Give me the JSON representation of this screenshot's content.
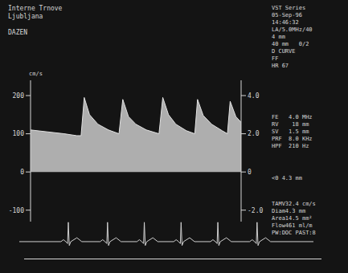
{
  "header": [
    "Interne Trnove",
    "Ljubljana",
    "DAZEN"
  ],
  "panel": [
    [
      "VST Series",
      "05-Sep-96",
      "14:46:32",
      "LA/5.0MHz/40",
      "4 mm",
      "40 mm   0/2",
      "D CURVE",
      "FF",
      "HR 67"
    ],
    [
      "FE   4.0 MHz",
      "RV    18 mm",
      "SV   1.5 mm",
      "PRF  8.0 KHz",
      "HPF  210 Hz"
    ],
    [
      "<0 4.3 mm"
    ],
    [
      "TAMV32.4 cm/s",
      "Diam4.3 mm",
      "Area14.5 mm²",
      "Flow461 ml/m",
      "PW:DOC PAST:8"
    ]
  ],
  "chart_data": [
    {
      "type": "area",
      "y_label": "cm/s",
      "color": "#e2e2e2",
      "tick_labels": "y",
      "xlim": [
        0,
        10
      ],
      "ylim": [
        -130,
        240
      ],
      "yticks": [
        200,
        100,
        0,
        -100
      ],
      "y2lim": [
        -2.6,
        4.8
      ],
      "y2ticks": [
        {
          "value": 4,
          "label": "4.0"
        },
        {
          "value": 2,
          "label": "2.0"
        },
        0,
        {
          "value": -2,
          "label": "-2.0"
        }
      ],
      "x": [
        0,
        0.8,
        1.6,
        2.2,
        2.4,
        2.55,
        2.8,
        3.2,
        3.7,
        4.2,
        4.38,
        4.65,
        5.0,
        5.5,
        6.1,
        6.28,
        6.55,
        6.9,
        7.4,
        7.8,
        7.93,
        8.2,
        8.6,
        9.1,
        9.35,
        9.48,
        9.75,
        10
      ],
      "values": [
        110,
        105,
        100,
        95,
        95,
        195,
        150,
        125,
        110,
        100,
        190,
        145,
        125,
        110,
        100,
        195,
        150,
        125,
        108,
        100,
        190,
        148,
        125,
        108,
        100,
        185,
        145,
        130
      ]
    },
    {
      "type": "line",
      "color": "#d0d0d0",
      "tick_labels": false,
      "xlim": [
        0,
        12
      ],
      "ylim": [
        -0.5,
        1.2
      ],
      "x": [
        0,
        1.7,
        1.8,
        1.9,
        1.97,
        2.0,
        2.04,
        2.1,
        2.35,
        2.55,
        3.3,
        3.4,
        3.5,
        3.57,
        3.6,
        3.64,
        3.7,
        3.95,
        4.15,
        4.8,
        4.9,
        5.0,
        5.07,
        5.1,
        5.14,
        5.2,
        5.45,
        5.65,
        6.3,
        6.4,
        6.5,
        6.57,
        6.6,
        6.64,
        6.7,
        6.95,
        7.15,
        7.8,
        7.9,
        8.0,
        8.07,
        8.1,
        8.14,
        8.2,
        8.45,
        8.65,
        9.4,
        9.5,
        9.6,
        9.67,
        9.7,
        9.74,
        9.8,
        10.05,
        10.25,
        12
      ],
      "values": [
        0,
        0,
        0.1,
        0,
        -0.1,
        1,
        -0.2,
        0,
        0.2,
        0,
        0,
        0.1,
        0,
        -0.1,
        1,
        -0.2,
        0,
        0.2,
        0,
        0,
        0.1,
        0,
        -0.1,
        1,
        -0.2,
        0,
        0.2,
        0,
        0,
        0.1,
        0,
        -0.1,
        1,
        -0.2,
        0,
        0.2,
        0,
        0,
        0.1,
        0,
        -0.1,
        1,
        -0.2,
        0,
        0.2,
        0,
        0,
        0.1,
        0,
        -0.1,
        1,
        -0.2,
        0,
        0.2,
        0,
        0
      ]
    }
  ]
}
